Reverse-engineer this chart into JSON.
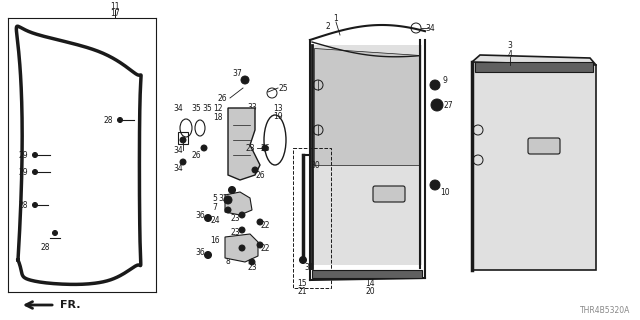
{
  "bg_color": "#ffffff",
  "diagram_code": "THR4B5320A",
  "black": "#1a1a1a",
  "gray": "#888888",
  "light_gray": "#e0e0e0",
  "mid_gray": "#c8c8c8"
}
